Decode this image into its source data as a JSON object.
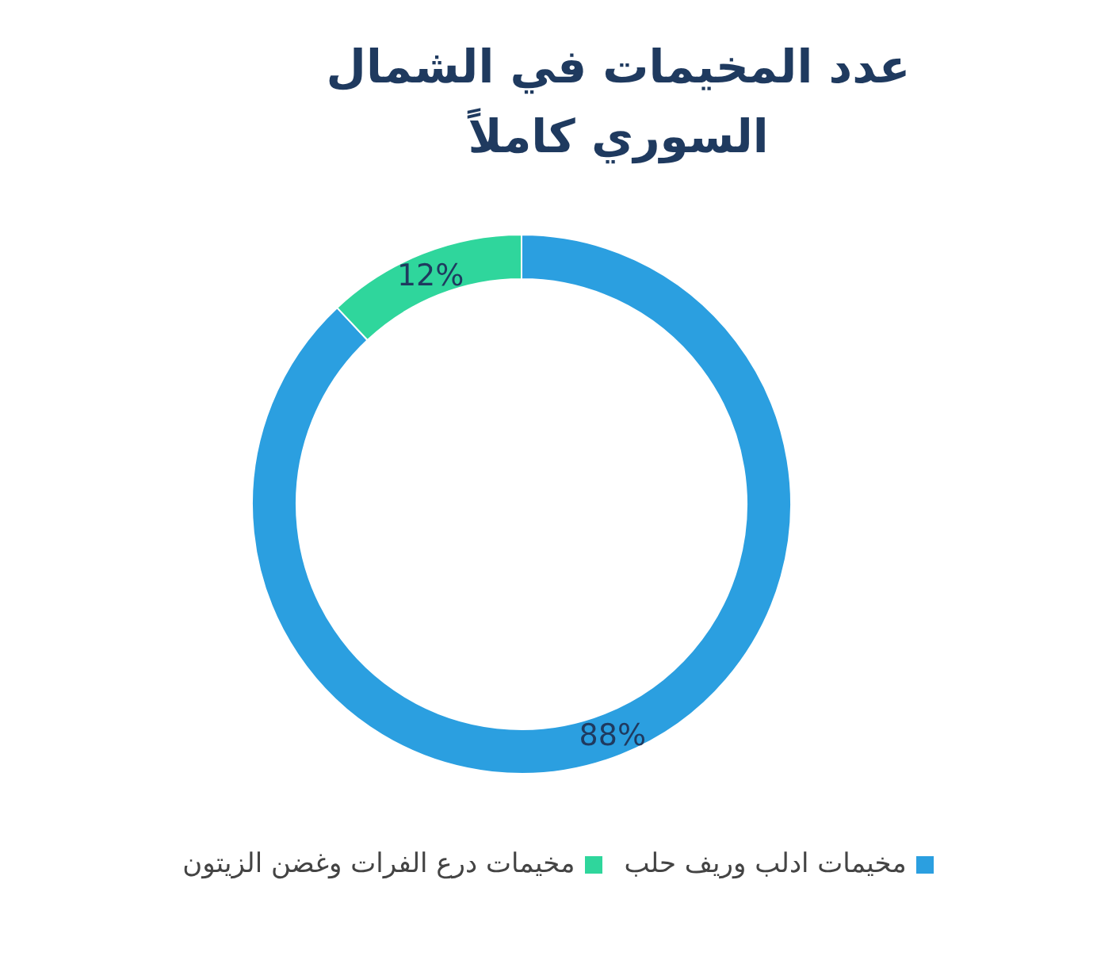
{
  "chart_data": {
    "type": "donut",
    "title": "عدد المخيمات في الشمال السوري كاملاً",
    "categories": [
      "مخيمات ادلب وريف حلب",
      "مخيمات درع الفرات وغضن الزيتون"
    ],
    "values": [
      88,
      12
    ],
    "colors": [
      "#2b9fe0",
      "#2fd69c"
    ],
    "value_labels": [
      "88%",
      "12%"
    ],
    "legend": "bottom"
  }
}
